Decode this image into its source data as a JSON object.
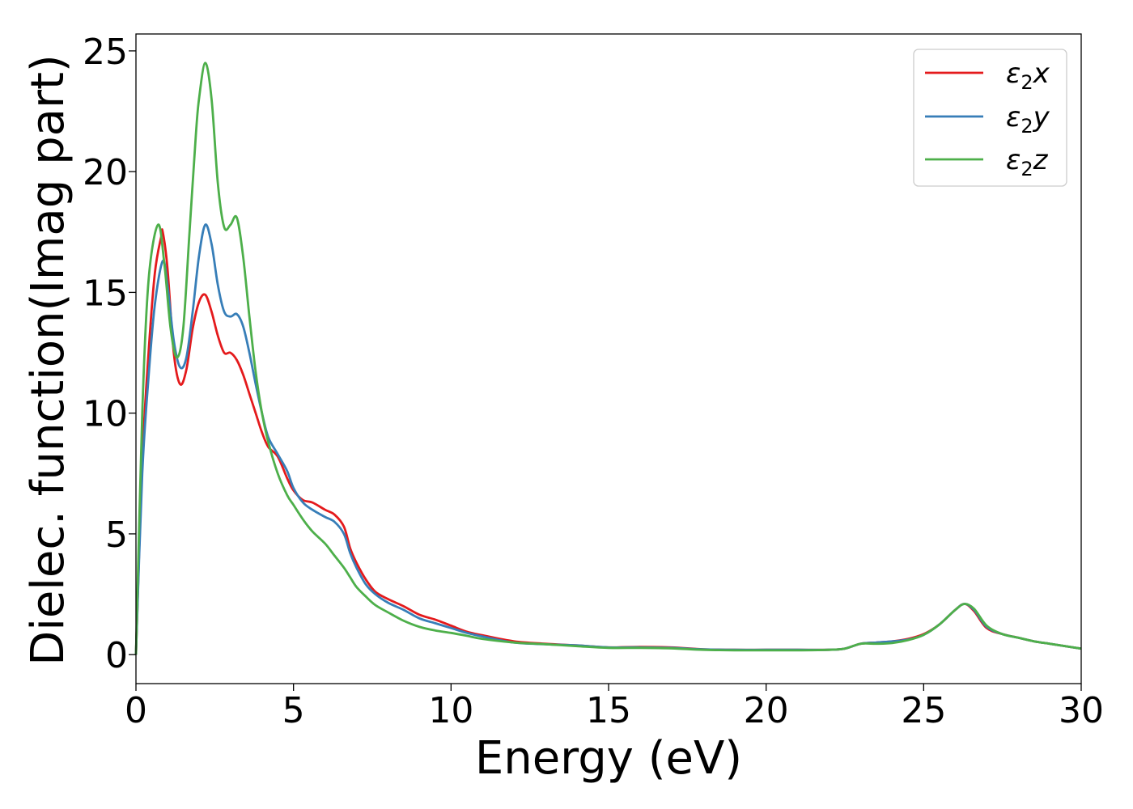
{
  "chart_data": {
    "type": "line",
    "title": "",
    "xlabel": "Energy (eV)",
    "ylabel": "Dielec. function(Imag part)",
    "xlim": [
      0,
      30
    ],
    "ylim": [
      -1.2,
      25.7
    ],
    "xticks": [
      0,
      5,
      10,
      15,
      20,
      25,
      30
    ],
    "yticks": [
      0,
      5,
      10,
      15,
      20,
      25
    ],
    "grid": false,
    "legend_position": "top-right",
    "series": [
      {
        "name": "ε2x",
        "legend_base": "ε",
        "legend_sub": "2",
        "legend_suffix": "x",
        "color": "#e41a1c",
        "x": [
          0,
          0.2,
          0.4,
          0.6,
          0.8,
          0.85,
          1.0,
          1.2,
          1.4,
          1.6,
          1.8,
          2.0,
          2.2,
          2.4,
          2.6,
          2.8,
          3.0,
          3.2,
          3.4,
          3.6,
          3.8,
          4.0,
          4.2,
          4.5,
          4.8,
          5.0,
          5.3,
          5.6,
          6.0,
          6.3,
          6.6,
          6.8,
          7.0,
          7.3,
          7.6,
          8.0,
          8.5,
          9.0,
          9.5,
          10.0,
          10.5,
          11.0,
          12.0,
          13.0,
          14.0,
          15.0,
          16.0,
          17.0,
          18.0,
          19.0,
          20.0,
          21.0,
          22.0,
          22.5,
          23.0,
          23.5,
          24.0,
          24.5,
          25.0,
          25.5,
          26.0,
          26.3,
          26.6,
          27.0,
          27.5,
          28.0,
          28.5,
          29.0,
          29.5,
          30.0
        ],
        "values": [
          0,
          8,
          12.5,
          15.8,
          17.3,
          17.5,
          16.0,
          12.5,
          11.2,
          11.8,
          13.5,
          14.6,
          14.9,
          14.2,
          13.2,
          12.5,
          12.5,
          12.2,
          11.6,
          10.8,
          10.0,
          9.2,
          8.6,
          8.2,
          7.3,
          6.8,
          6.4,
          6.3,
          6.0,
          5.8,
          5.3,
          4.4,
          3.8,
          3.1,
          2.6,
          2.3,
          2.0,
          1.65,
          1.45,
          1.2,
          0.95,
          0.8,
          0.55,
          0.45,
          0.38,
          0.3,
          0.32,
          0.3,
          0.22,
          0.2,
          0.2,
          0.2,
          0.2,
          0.25,
          0.45,
          0.5,
          0.55,
          0.65,
          0.85,
          1.25,
          1.85,
          2.1,
          1.8,
          1.1,
          0.85,
          0.7,
          0.55,
          0.45,
          0.35,
          0.25
        ]
      },
      {
        "name": "ε2y",
        "legend_base": "ε",
        "legend_sub": "2",
        "legend_suffix": "y",
        "color": "#377eb8",
        "x": [
          0,
          0.2,
          0.4,
          0.6,
          0.85,
          1.0,
          1.2,
          1.4,
          1.6,
          1.8,
          2.0,
          2.2,
          2.4,
          2.6,
          2.8,
          3.0,
          3.2,
          3.4,
          3.6,
          3.8,
          4.0,
          4.2,
          4.5,
          4.8,
          5.0,
          5.3,
          5.6,
          6.0,
          6.3,
          6.6,
          6.8,
          7.0,
          7.3,
          7.6,
          8.0,
          8.5,
          9.0,
          9.5,
          10.0,
          10.5,
          11.0,
          12.0,
          13.0,
          14.0,
          15.0,
          16.0,
          17.0,
          18.0,
          19.0,
          20.0,
          21.0,
          22.0,
          22.5,
          23.0,
          23.5,
          24.0,
          24.5,
          25.0,
          25.5,
          26.0,
          26.3,
          26.6,
          27.0,
          27.5,
          28.0,
          28.5,
          29.0,
          29.5,
          30.0
        ],
        "values": [
          0,
          7.5,
          11.5,
          14.5,
          16.3,
          15.3,
          13.0,
          11.9,
          12.3,
          14.2,
          16.5,
          17.8,
          17.0,
          15.3,
          14.2,
          14.0,
          14.1,
          13.6,
          12.5,
          11.2,
          10.0,
          9.0,
          8.3,
          7.6,
          6.9,
          6.3,
          6.0,
          5.7,
          5.5,
          5.0,
          4.2,
          3.6,
          2.9,
          2.5,
          2.15,
          1.85,
          1.5,
          1.3,
          1.1,
          0.9,
          0.75,
          0.5,
          0.43,
          0.38,
          0.3,
          0.3,
          0.28,
          0.22,
          0.2,
          0.2,
          0.2,
          0.2,
          0.25,
          0.45,
          0.5,
          0.55,
          0.62,
          0.82,
          1.25,
          1.85,
          2.1,
          1.85,
          1.15,
          0.85,
          0.7,
          0.55,
          0.45,
          0.35,
          0.25
        ]
      },
      {
        "name": "ε2z",
        "legend_base": "ε",
        "legend_sub": "2",
        "legend_suffix": "z",
        "color": "#4daf4a",
        "x": [
          0,
          0.2,
          0.4,
          0.7,
          0.9,
          1.1,
          1.3,
          1.5,
          1.7,
          1.9,
          2.0,
          2.2,
          2.4,
          2.6,
          2.8,
          3.0,
          3.2,
          3.4,
          3.6,
          3.8,
          4.0,
          4.2,
          4.5,
          4.8,
          5.0,
          5.3,
          5.6,
          6.0,
          6.3,
          6.6,
          6.8,
          7.0,
          7.3,
          7.6,
          8.0,
          8.5,
          9.0,
          9.5,
          10.0,
          10.5,
          11.0,
          12.0,
          13.0,
          14.0,
          15.0,
          16.0,
          17.0,
          18.0,
          19.0,
          20.0,
          21.0,
          22.0,
          22.5,
          23.0,
          23.5,
          24.0,
          24.5,
          25.0,
          25.5,
          26.0,
          26.3,
          26.6,
          27.0,
          27.5,
          28.0,
          28.5,
          29.0,
          29.5,
          30.0
        ],
        "values": [
          0,
          10,
          15.5,
          17.8,
          16.2,
          13.5,
          12.3,
          13.5,
          17.5,
          21.5,
          23.0,
          24.5,
          23.0,
          19.5,
          17.7,
          17.8,
          18.1,
          16.5,
          14.0,
          11.7,
          10.0,
          8.8,
          7.5,
          6.6,
          6.2,
          5.6,
          5.1,
          4.6,
          4.1,
          3.6,
          3.2,
          2.8,
          2.4,
          2.05,
          1.75,
          1.4,
          1.15,
          1.0,
          0.9,
          0.78,
          0.65,
          0.5,
          0.43,
          0.35,
          0.28,
          0.28,
          0.26,
          0.2,
          0.18,
          0.18,
          0.18,
          0.2,
          0.25,
          0.45,
          0.45,
          0.48,
          0.6,
          0.82,
          1.25,
          1.85,
          2.1,
          1.9,
          1.2,
          0.85,
          0.7,
          0.55,
          0.45,
          0.35,
          0.25
        ]
      }
    ]
  }
}
